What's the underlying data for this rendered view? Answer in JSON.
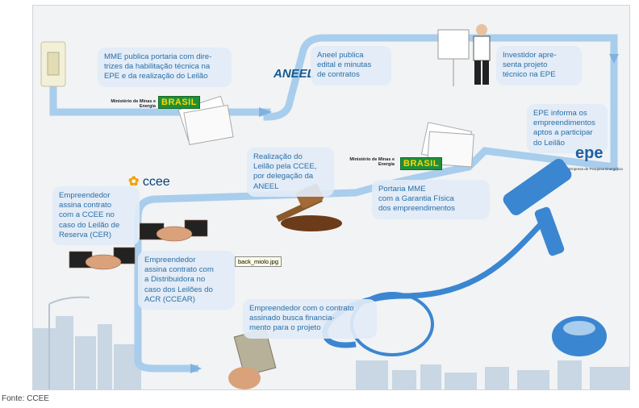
{
  "steps": {
    "mme_portaria": "MME publica portaria com dire-\ntrizes da habilitação técnica na\nEPE e da realização do Leilão",
    "aneel_edital": "Aneel publica\nedital e minutas\nde contratos",
    "investidor": "Investidor apre-\nsenta projeto\ntécnico na EPE",
    "epe_informa": "EPE informa os\nempreendimentos\naptos a participar\ndo Leilão",
    "realizacao": "Realização do\nLeilão pela CCEE,\npor delegação da\nANEEL",
    "portaria_mme": "Portaria MME\ncom a Garantia Física\ndos empreendimentos",
    "ccee_contrato": "Empreendedor\nassina contrato\ncom a CCEE no\ncaso do Leilão de\nReserva (CER)",
    "distribuidora": "Empreendedor\nassina contrato com\na Distribuidora no\ncaso dos Leilões do\nACR (CCEAR)",
    "financiamento": "Empreendedor com o contrato\nassinado busca financia-\nmento para o projeto"
  },
  "logos": {
    "ministerio_1": "Ministério de\nMinas e Energia",
    "brasil_1": "BRASIL",
    "ministerio_2": "Ministério de\nMinas e Energia",
    "brasil_2": "BRASIL",
    "ccee": "ccee",
    "aneel": "ANEEL",
    "epe": "epe",
    "epe_sub": "Empresa de Pesquisa Energética"
  },
  "filename_tag": "back_miolo.jpg",
  "source": "Fonte: CCEE",
  "colors": {
    "path": "#a9cdec",
    "path_dark": "#7fb2de",
    "text": "#2a6fa6",
    "gavel": "#3b86d1"
  }
}
